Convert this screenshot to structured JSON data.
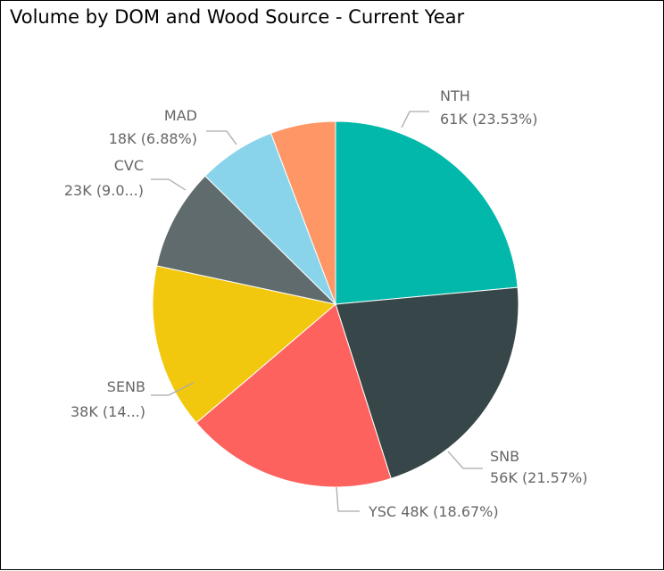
{
  "visual": {
    "title": "Volume by DOM and Wood Source - Current Year"
  },
  "chart_data": {
    "type": "pie",
    "title": "Volume by DOM and Wood Source - Current Year",
    "slices": [
      {
        "name": "NTH",
        "value": 61,
        "percent": 23.53,
        "color": "#01B8AA",
        "label_line1": "NTH",
        "label_line2": "61K (23.53%)"
      },
      {
        "name": "SNB",
        "value": 56,
        "percent": 21.57,
        "color": "#374649",
        "label_line1": "SNB",
        "label_line2": "56K (21.57%)"
      },
      {
        "name": "YSC",
        "value": 48,
        "percent": 18.67,
        "color": "#FD625E",
        "label_line1": "YSC 48K (18.67%)",
        "label_line2": ""
      },
      {
        "name": "SENB",
        "value": 38,
        "percent": 14.6,
        "color": "#F2C80F",
        "label_line1": "SENB",
        "label_line2": "38K (14...)"
      },
      {
        "name": "CVC",
        "value": 23,
        "percent": 9.0,
        "color": "#5F6B6D",
        "label_line1": "CVC",
        "label_line2": "23K (9.0...)"
      },
      {
        "name": "MAD",
        "value": 18,
        "percent": 6.88,
        "color": "#8AD4EB",
        "label_line1": "MAD",
        "label_line2": "18K (6.88%)"
      },
      {
        "name": "",
        "value": 14,
        "percent": 5.75,
        "color": "#FE9666",
        "label_line1": "",
        "label_line2": ""
      }
    ],
    "legend": "none",
    "data_labels": "outside with leader lines"
  }
}
